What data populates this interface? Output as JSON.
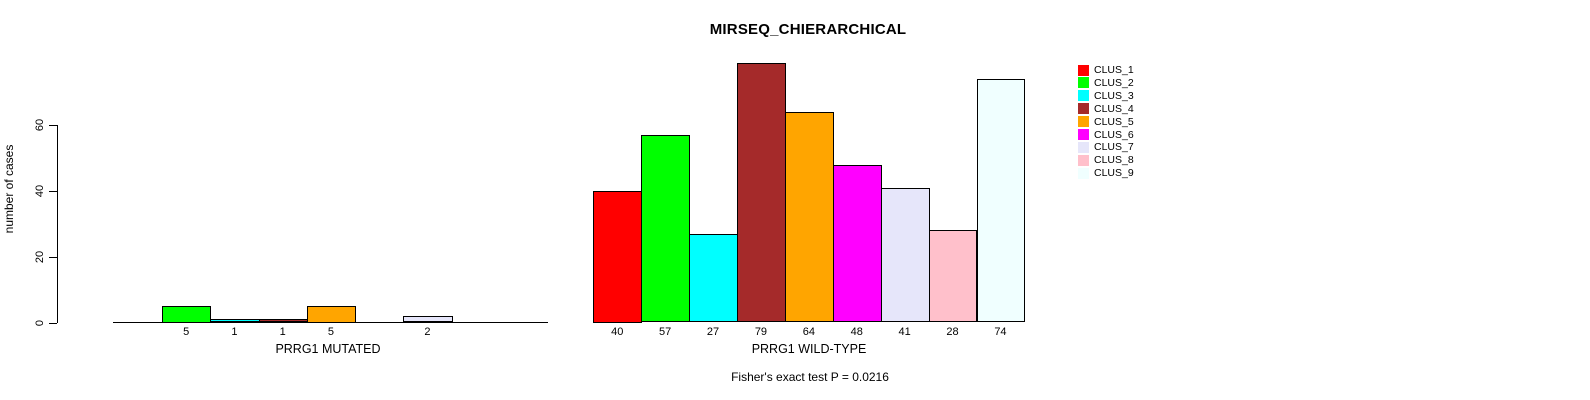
{
  "chart_data": {
    "type": "bar",
    "title": "MIRSEQ_CHIERARCHICAL",
    "ylabel": "number of cases",
    "xlabel": "",
    "ylim": [
      0,
      79
    ],
    "yticks": [
      0,
      20,
      40,
      60
    ],
    "grid": false,
    "legend_position": "right",
    "clusters": [
      "CLUS_1",
      "CLUS_2",
      "CLUS_3",
      "CLUS_4",
      "CLUS_5",
      "CLUS_6",
      "CLUS_7",
      "CLUS_8",
      "CLUS_9"
    ],
    "colors": [
      "#FF0000",
      "#00FF00",
      "#00FFFF",
      "#A52A2A",
      "#FFA500",
      "#FF00FF",
      "#E6E6FA",
      "#FFC0CB",
      "#F0FFFF"
    ],
    "bar_border_color": "#000000",
    "groups": [
      {
        "label": "PRRG1 MUTATED",
        "values": [
          0,
          5,
          1,
          1,
          5,
          0,
          2,
          0,
          0
        ]
      },
      {
        "label": "PRRG1 WILD-TYPE",
        "values": [
          40,
          57,
          27,
          79,
          64,
          48,
          41,
          28,
          74
        ]
      }
    ],
    "annotation": "Fisher's exact test P = 0.0216"
  }
}
